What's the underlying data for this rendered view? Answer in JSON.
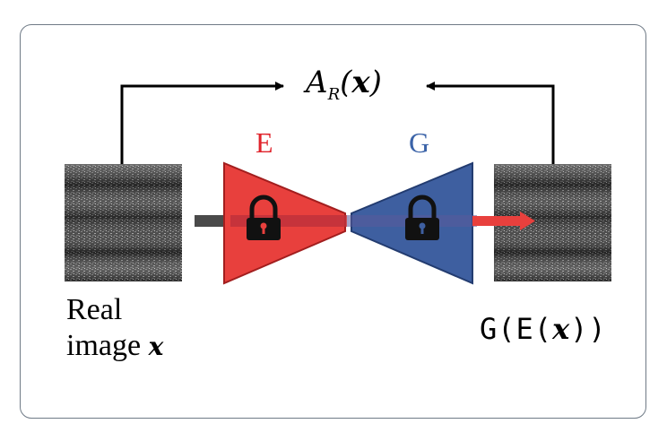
{
  "encoder": {
    "label": "E",
    "color": "#e0232b",
    "fill": "#e8403d"
  },
  "generator": {
    "label": "G",
    "color": "#3b63a8",
    "fill": "#3e5fa0"
  },
  "input": {
    "line1": "Real",
    "line2": "image",
    "symbol": "x"
  },
  "output": {
    "prefix": "G(E(",
    "symbol": "x",
    "suffix": "))"
  },
  "metric": {
    "name": "A",
    "subscript": "R",
    "open": "(",
    "symbol": "x",
    "close": ")"
  }
}
